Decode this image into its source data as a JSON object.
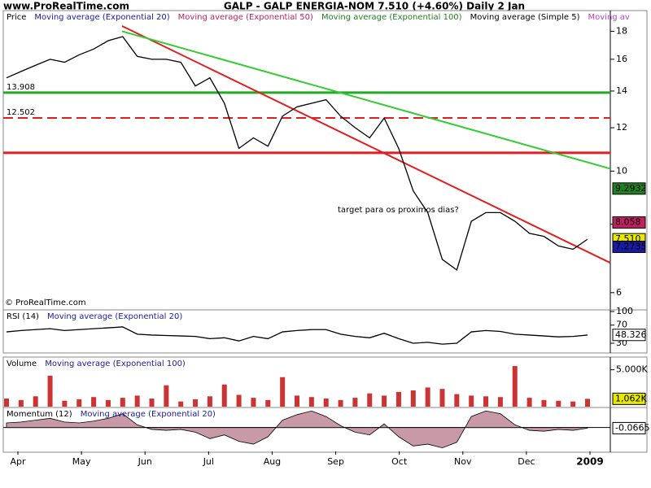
{
  "header": {
    "site": "www.ProRealTime.com",
    "title": "GALP - GALP ENERGIA-NOM   7.510 (+4.60%)   Daily  2 Jan",
    "copyright": "© ProRealTime.com"
  },
  "x_axis": {
    "labels": [
      "Apr",
      "May",
      "Jun",
      "Jul",
      "Aug",
      "Sep",
      "Oct",
      "Nov",
      "Dec",
      "2009"
    ]
  },
  "chart_data": [
    {
      "type": "line",
      "label": "Price",
      "color": "#000000",
      "log": true,
      "legend": [
        {
          "name": "Moving average (Exponential 20)",
          "color": "#1a1aa0"
        },
        {
          "name": "Moving average (Exponential 50)",
          "color": "#c02060"
        },
        {
          "name": "Moving average (Exponential 100)",
          "color": "#208020"
        },
        {
          "name": "Moving average (Simple 5)",
          "color": "#000000"
        },
        {
          "name": "Moving av",
          "color": "#c040c0"
        }
      ],
      "ylim": [
        5.6,
        19.5
      ],
      "yticks": [
        6,
        8,
        10,
        12,
        14,
        16,
        18
      ],
      "values": [
        14.8,
        15.2,
        15.6,
        16.0,
        15.8,
        16.3,
        16.7,
        17.3,
        17.6,
        16.2,
        16.0,
        16.0,
        15.8,
        14.3,
        14.8,
        13.3,
        11.0,
        11.5,
        11.1,
        12.6,
        13.1,
        13.3,
        13.5,
        12.6,
        12.0,
        11.5,
        12.5,
        11.0,
        9.2,
        8.4,
        6.9,
        6.6,
        8.1,
        8.4,
        8.4,
        8.1,
        7.7,
        7.6,
        7.3,
        7.2,
        7.51
      ],
      "hlines": [
        {
          "value": 13.908,
          "label": "13.908",
          "color": "#22aa22"
        },
        {
          "value": 12.502,
          "label": "12.502",
          "color": "#e02020",
          "dashed": true
        },
        {
          "value": 10.8,
          "color": "#e02020"
        }
      ],
      "trendlines": [
        {
          "color": "#e02020",
          "values": [
            18.4,
            6.8
          ]
        },
        {
          "color": "#33cc33",
          "values": [
            18.0,
            10.1
          ]
        }
      ],
      "annotation": "target para os proximos dias?",
      "last": [
        {
          "value": 9.2932,
          "label": "9.2932",
          "color": "#208020"
        },
        {
          "value": 8.058,
          "label": "8.058",
          "color": "#c02060"
        },
        {
          "value": 7.51,
          "label": "7.510",
          "color": "#e8e800"
        },
        {
          "value": 7.2735,
          "label": "7.2735",
          "color": "#1a1aa0"
        }
      ]
    },
    {
      "type": "line",
      "label": "RSI (14)",
      "color": "#000000",
      "legend": [
        {
          "name": "Moving average (Exponential 20)",
          "color": "#1a1aa0"
        }
      ],
      "ylim": [
        12,
        100
      ],
      "yticks": [
        30,
        70,
        100
      ],
      "values": [
        55,
        58,
        60,
        62,
        58,
        60,
        62,
        64,
        66,
        50,
        48,
        47,
        46,
        45,
        40,
        42,
        35,
        45,
        40,
        55,
        58,
        60,
        60,
        50,
        45,
        42,
        52,
        40,
        30,
        32,
        28,
        30,
        55,
        58,
        56,
        50,
        48,
        46,
        44,
        45,
        48
      ],
      "last": [
        {
          "value": 48.326,
          "label": "48.326",
          "color": "#ffffff"
        }
      ]
    },
    {
      "type": "bar",
      "label": "Volume",
      "color": "#cc3333",
      "legend": [
        {
          "name": "Moving average (Exponential 100)",
          "color": "#1a1aa0"
        }
      ],
      "ylim": [
        0,
        6500
      ],
      "yticks": [
        {
          "value": 5000,
          "label": "5.000K"
        }
      ],
      "values": [
        1100,
        900,
        1400,
        4200,
        800,
        1000,
        1300,
        900,
        1200,
        1500,
        1100,
        2900,
        700,
        1000,
        1400,
        3000,
        1600,
        1200,
        900,
        4000,
        1500,
        1300,
        1100,
        900,
        1200,
        1800,
        1500,
        2000,
        2200,
        2600,
        2400,
        1700,
        1500,
        1400,
        1300,
        5500,
        1200,
        900,
        800,
        700,
        1062
      ],
      "last": [
        {
          "value": 1062,
          "label": "1,062K",
          "color": "#e8e800"
        }
      ]
    },
    {
      "type": "area",
      "label": "Momentum (12)",
      "color": "#c89aa8",
      "legend": [
        {
          "name": "Moving average (Exponential 20)",
          "color": "#1a1aa0"
        }
      ],
      "ylim": [
        -2.5,
        2
      ],
      "values": [
        0.5,
        0.6,
        0.8,
        1.0,
        0.6,
        0.5,
        0.7,
        1.0,
        1.5,
        0.3,
        -0.2,
        -0.3,
        -0.2,
        -0.5,
        -1.2,
        -0.8,
        -1.5,
        -1.8,
        -1.0,
        0.8,
        1.4,
        1.8,
        1.2,
        0.2,
        -0.5,
        -0.8,
        0.4,
        -1.0,
        -2.0,
        -1.8,
        -2.2,
        -1.6,
        1.2,
        1.8,
        1.5,
        0.3,
        -0.3,
        -0.4,
        -0.2,
        -0.3,
        -0.07
      ],
      "last": [
        {
          "value": -0.0665,
          "label": "-0.0665",
          "color": "#ffffff"
        }
      ]
    }
  ]
}
